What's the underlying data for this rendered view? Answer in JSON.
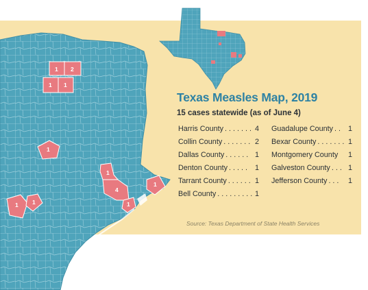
{
  "title": "Texas Measles Map, 2019",
  "subtitle": "15 cases statewide (as of June 4)",
  "source": "Source: Texas Department of State Health Services",
  "colors": {
    "panel": "#f8e3ab",
    "county_fill": "#4fa4bb",
    "county_border": "#9fd0dd",
    "case_county": "#e87a80",
    "title": "#2e82a3"
  },
  "counties_left": [
    {
      "name": "Harris County",
      "dots": ". . . . . . .",
      "count": "4"
    },
    {
      "name": "Collin County",
      "dots": ". . . . . . .",
      "count": "2"
    },
    {
      "name": "Dallas County",
      "dots": ". . . . . .",
      "count": "1"
    },
    {
      "name": "Denton County",
      "dots": ". . . . .",
      "count": "1"
    },
    {
      "name": "Tarrant County",
      "dots": ". . . . . .",
      "count": "1"
    },
    {
      "name": "Bell County",
      "dots": ". . . . . . . . .",
      "count": "1"
    }
  ],
  "counties_right": [
    {
      "name": "Guadalupe County",
      "dots": ". .",
      "count": "1"
    },
    {
      "name": "Bexar County",
      "dots": ". . . . . . .",
      "count": "1"
    },
    {
      "name": "Montgomery County",
      "dots": "",
      "count": "1"
    },
    {
      "name": "Galveston County",
      "dots": ". . .",
      "count": "1"
    },
    {
      "name": "Jefferson County",
      "dots": ". . .",
      "count": "1"
    }
  ],
  "map_labels": {
    "denton": "1",
    "collin": "2",
    "tarrant": "1",
    "dallas": "1",
    "bell": "1",
    "montgomery": "1",
    "harris": "4",
    "galveston": "1",
    "jefferson": "1",
    "bexar": "1",
    "guadalupe": "1"
  }
}
